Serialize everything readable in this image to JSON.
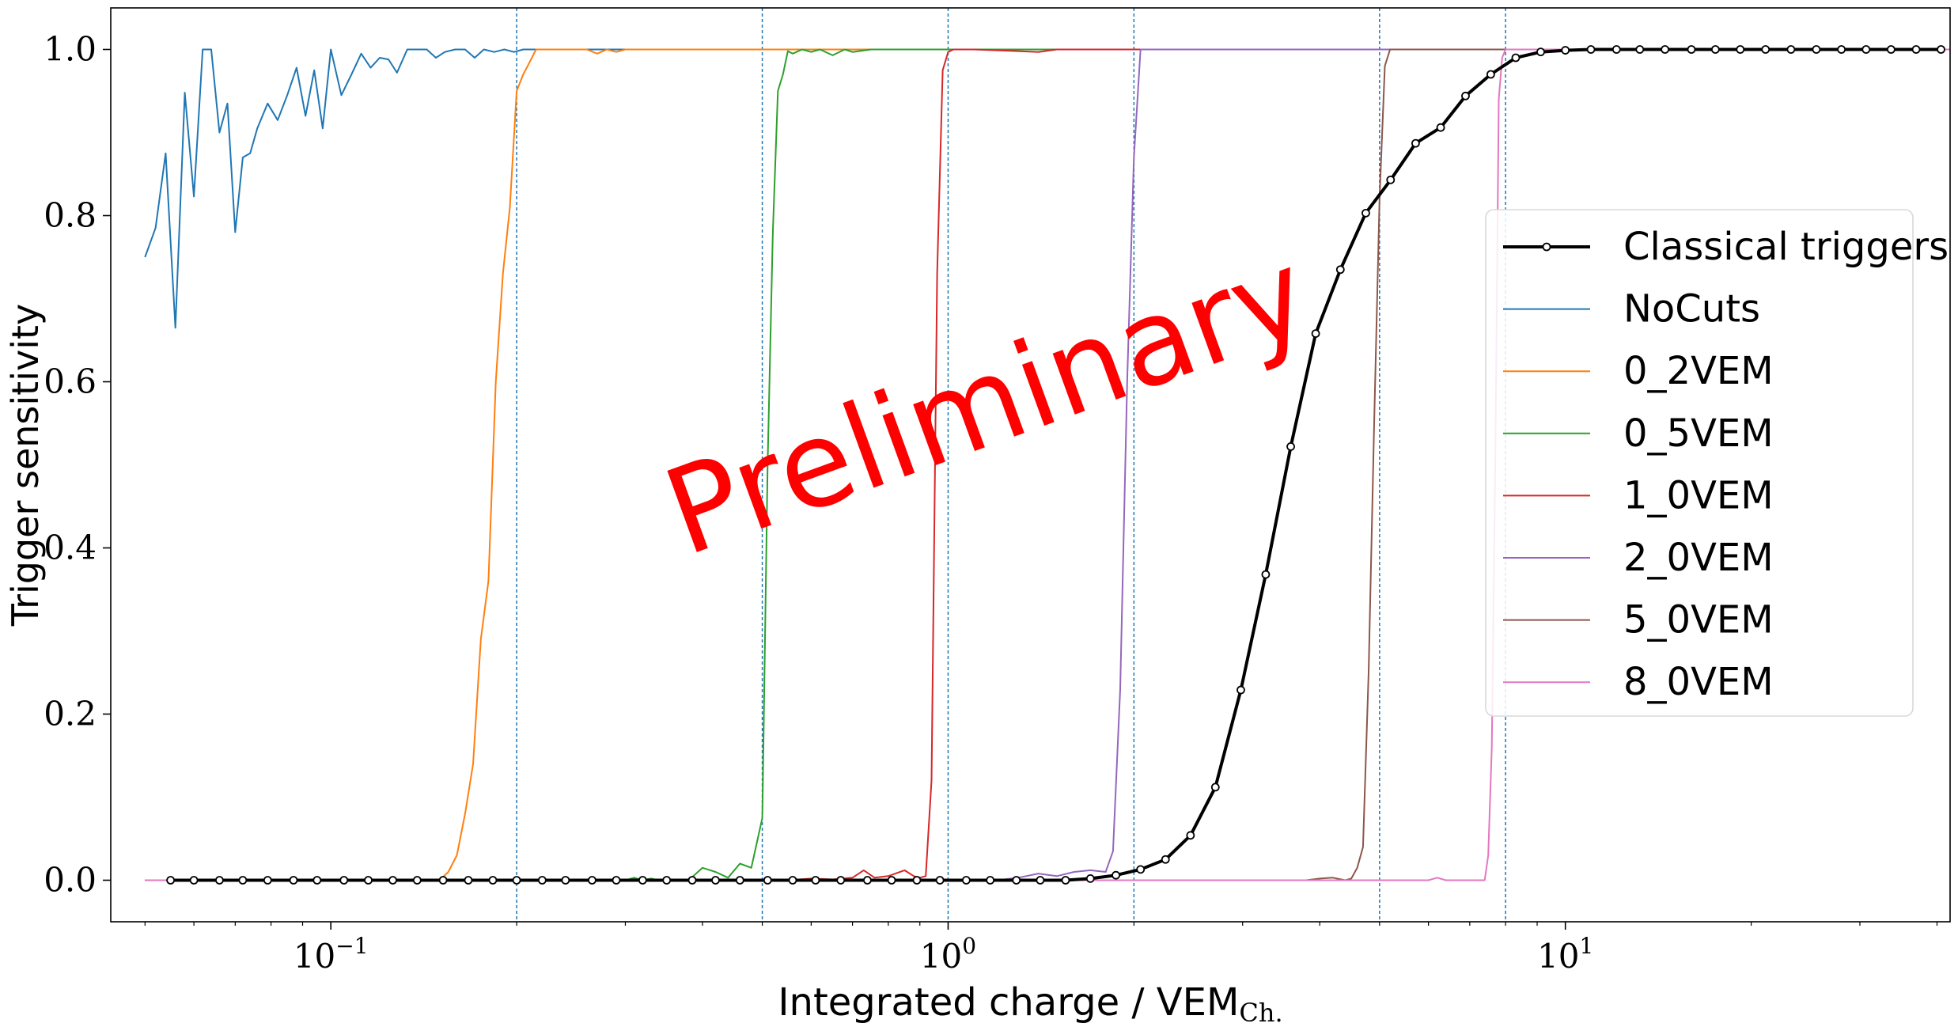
{
  "chart_data": {
    "type": "line",
    "title": "",
    "xlabel": "Integrated charge / VEM",
    "xlabel_sub": "Ch.",
    "ylabel": "Trigger sensitivity",
    "xscale": "log",
    "xlim": [
      0.044,
      42
    ],
    "ylim": [
      -0.05,
      1.05
    ],
    "x_tick_labels": [
      {
        "value": 0.1,
        "base": "10",
        "exp": "−1"
      },
      {
        "value": 1,
        "base": "10",
        "exp": "0"
      },
      {
        "value": 10,
        "base": "10",
        "exp": "1"
      }
    ],
    "y_ticks": [
      0.0,
      0.2,
      0.4,
      0.6,
      0.8,
      1.0
    ],
    "y_tick_labels": [
      "0.0",
      "0.2",
      "0.4",
      "0.6",
      "0.8",
      "1.0"
    ],
    "vlines": [
      0.2,
      0.5,
      1.0,
      2.0,
      5.0,
      8.0
    ],
    "vline_color": "#1f77b4",
    "grid": false,
    "legend_position": "center-right",
    "watermark": {
      "text": "Preliminary",
      "color": "#ff0000"
    },
    "series": [
      {
        "name": "Classical triggers",
        "color": "#000000",
        "marker": true,
        "linewidth": 4,
        "x": [
          0.055,
          0.06,
          0.066,
          0.072,
          0.079,
          0.087,
          0.095,
          0.105,
          0.115,
          0.126,
          0.138,
          0.152,
          0.167,
          0.183,
          0.2,
          0.22,
          0.24,
          0.265,
          0.29,
          0.32,
          0.35,
          0.385,
          0.42,
          0.46,
          0.51,
          0.56,
          0.61,
          0.67,
          0.74,
          0.81,
          0.89,
          0.97,
          1.07,
          1.17,
          1.29,
          1.41,
          1.55,
          1.7,
          1.87,
          2.05,
          2.25,
          2.47,
          2.71,
          2.98,
          3.27,
          3.59,
          3.94,
          4.32,
          4.75,
          5.21,
          5.72,
          6.28,
          6.89,
          7.57,
          8.31,
          9.12,
          10.0,
          11.0,
          12.1,
          13.2,
          14.5,
          16.0,
          17.5,
          19.2,
          21.1,
          23.2,
          25.5,
          28.0,
          30.7,
          33.7,
          37.0,
          40.6
        ],
        "y": [
          0,
          0,
          0,
          0,
          0,
          0,
          0,
          0,
          0,
          0,
          0,
          0,
          0,
          0,
          0,
          0,
          0,
          0,
          0,
          0,
          0,
          0,
          0,
          0,
          0,
          0,
          0,
          0,
          0,
          0,
          0,
          0,
          0,
          0,
          0,
          0,
          0,
          0.002,
          0.006,
          0.013,
          0.025,
          0.054,
          0.112,
          0.229,
          0.368,
          0.522,
          0.658,
          0.735,
          0.803,
          0.843,
          0.887,
          0.906,
          0.944,
          0.97,
          0.99,
          0.997,
          0.999,
          1,
          1,
          1,
          1,
          1,
          1,
          1,
          1,
          1,
          1,
          1,
          1,
          1,
          1,
          1
        ]
      },
      {
        "name": "NoCuts",
        "color": "#1f77b4",
        "marker": false,
        "linewidth": 2,
        "x": [
          0.05,
          0.052,
          0.054,
          0.056,
          0.058,
          0.06,
          0.062,
          0.064,
          0.066,
          0.068,
          0.07,
          0.072,
          0.074,
          0.076,
          0.079,
          0.082,
          0.085,
          0.088,
          0.091,
          0.094,
          0.097,
          0.1,
          0.104,
          0.108,
          0.112,
          0.116,
          0.12,
          0.124,
          0.128,
          0.133,
          0.138,
          0.143,
          0.148,
          0.153,
          0.159,
          0.165,
          0.171,
          0.177,
          0.184,
          0.191,
          0.198,
          0.205,
          0.212,
          0.22,
          0.228,
          0.236,
          0.3,
          0.5,
          1.0,
          2.0,
          5.0,
          10.0,
          42.0
        ],
        "y": [
          0.75,
          0.785,
          0.875,
          0.665,
          0.948,
          0.823,
          1.0,
          1.0,
          0.9,
          0.935,
          0.78,
          0.87,
          0.875,
          0.905,
          0.935,
          0.915,
          0.945,
          0.978,
          0.92,
          0.975,
          0.905,
          1.0,
          0.945,
          0.97,
          0.995,
          0.978,
          0.99,
          0.988,
          0.972,
          1.0,
          1.0,
          1.0,
          0.99,
          0.997,
          1.0,
          1.0,
          0.99,
          1.0,
          0.997,
          1.0,
          0.997,
          1.0,
          1.0,
          1.0,
          1.0,
          1.0,
          1.0,
          1.0,
          1.0,
          1.0,
          1.0,
          1.0,
          1.0
        ]
      },
      {
        "name": "0_2VEM",
        "color": "#ff7f0e",
        "marker": false,
        "linewidth": 2,
        "x": [
          0.05,
          0.15,
          0.155,
          0.16,
          0.165,
          0.17,
          0.175,
          0.18,
          0.185,
          0.19,
          0.195,
          0.2,
          0.205,
          0.21,
          0.215,
          0.22,
          0.225,
          0.23,
          0.26,
          0.27,
          0.28,
          0.29,
          0.3,
          42.0
        ],
        "y": [
          0,
          0,
          0.01,
          0.03,
          0.08,
          0.14,
          0.29,
          0.36,
          0.6,
          0.73,
          0.81,
          0.95,
          0.97,
          0.985,
          1.0,
          1.0,
          1.0,
          1.0,
          1.0,
          0.995,
          1.0,
          0.997,
          1.0,
          1.0
        ]
      },
      {
        "name": "0_5VEM",
        "color": "#2ca02c",
        "marker": false,
        "linewidth": 2,
        "x": [
          0.05,
          0.3,
          0.31,
          0.32,
          0.33,
          0.34,
          0.38,
          0.4,
          0.42,
          0.44,
          0.46,
          0.48,
          0.5,
          0.51,
          0.52,
          0.53,
          0.54,
          0.55,
          0.56,
          0.58,
          0.6,
          0.62,
          0.65,
          0.68,
          0.7,
          0.75,
          1.0,
          42.0
        ],
        "y": [
          0,
          0,
          0.003,
          0,
          0.002,
          0,
          0,
          0.015,
          0.01,
          0.003,
          0.02,
          0.015,
          0.075,
          0.5,
          0.78,
          0.95,
          0.97,
          0.998,
          0.995,
          1.0,
          0.997,
          1.0,
          0.993,
          1.0,
          0.997,
          1.0,
          1.0,
          1.0
        ]
      },
      {
        "name": "1_0VEM",
        "color": "#d62728",
        "marker": false,
        "linewidth": 2,
        "x": [
          0.05,
          0.55,
          0.6,
          0.65,
          0.7,
          0.73,
          0.76,
          0.8,
          0.85,
          0.88,
          0.9,
          0.92,
          0.94,
          0.96,
          0.98,
          1.0,
          1.02,
          1.05,
          1.1,
          1.3,
          1.4,
          1.5,
          42.0
        ],
        "y": [
          0,
          0,
          0.002,
          0.001,
          0.003,
          0.012,
          0.003,
          0.005,
          0.012,
          0.005,
          0.003,
          0.005,
          0.12,
          0.73,
          0.975,
          0.997,
          1.0,
          1.0,
          1.0,
          0.998,
          0.997,
          1.0,
          1.0
        ]
      },
      {
        "name": "2_0VEM",
        "color": "#9467bd",
        "marker": false,
        "linewidth": 2,
        "x": [
          0.05,
          1.2,
          1.3,
          1.4,
          1.5,
          1.6,
          1.7,
          1.8,
          1.85,
          1.9,
          1.95,
          2.0,
          2.05,
          2.1,
          42.0
        ],
        "y": [
          0,
          0,
          0.003,
          0.008,
          0.005,
          0.01,
          0.012,
          0.01,
          0.035,
          0.23,
          0.6,
          0.87,
          1.0,
          1.0,
          1.0
        ]
      },
      {
        "name": "5_0VEM",
        "color": "#8c564b",
        "marker": false,
        "linewidth": 2,
        "x": [
          0.05,
          3.8,
          4.0,
          4.2,
          4.4,
          4.5,
          4.6,
          4.7,
          4.8,
          4.9,
          5.0,
          5.1,
          5.2,
          5.3,
          42.0
        ],
        "y": [
          0,
          0,
          0.002,
          0.003,
          0,
          0.002,
          0.015,
          0.04,
          0.25,
          0.55,
          0.82,
          0.98,
          1.0,
          1.0,
          1.0
        ]
      },
      {
        "name": "8_0VEM",
        "color": "#e377c2",
        "marker": false,
        "linewidth": 2,
        "x": [
          0.05,
          6.0,
          6.2,
          6.4,
          7.0,
          7.4,
          7.5,
          7.6,
          7.7,
          7.8,
          7.9,
          8.0,
          8.1,
          8.2,
          42.0
        ],
        "y": [
          0,
          0,
          0.003,
          0,
          0,
          0,
          0.03,
          0.16,
          0.5,
          0.94,
          0.99,
          1.0,
          1.0,
          1.0,
          1.0
        ]
      }
    ]
  }
}
